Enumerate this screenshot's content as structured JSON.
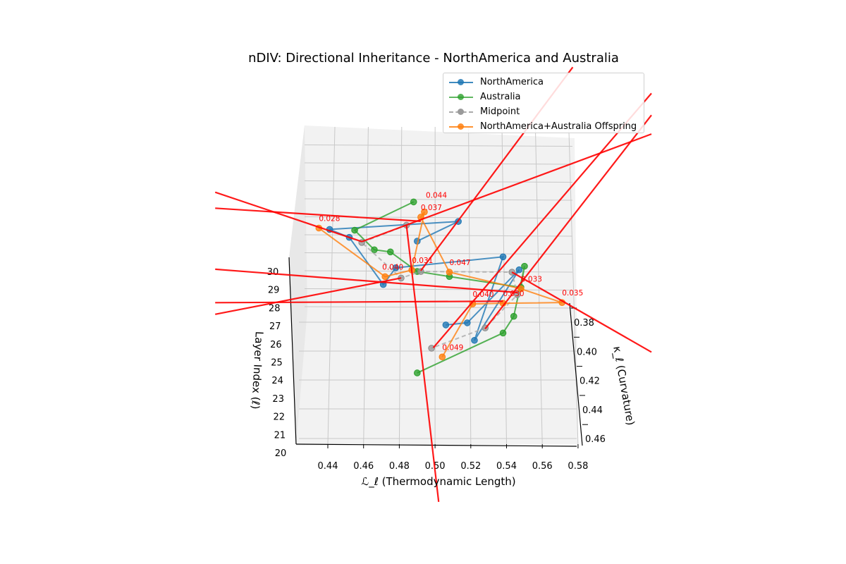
{
  "chart_data": {
    "type": "line3d",
    "title": "nDIV: Directional Inheritance - NorthAmerica and Australia",
    "xlabel": "ℒ_ℓ (Thermodynamic Length)",
    "ylabel": "κ_ℓ (Curvature)",
    "zlabel": "Layer Index (ℓ)",
    "xlim": [
      0.42,
      0.58
    ],
    "ylim": [
      0.37,
      0.46
    ],
    "zlim": [
      20,
      30
    ],
    "xticks": [
      "0.44",
      "0.46",
      "0.48",
      "0.50",
      "0.52",
      "0.54",
      "0.56",
      "0.58"
    ],
    "yticks": [
      "0.38",
      "0.40",
      "0.42",
      "0.44",
      "0.46"
    ],
    "zticks": [
      "20",
      "21",
      "22",
      "23",
      "24",
      "25",
      "26",
      "27",
      "28",
      "29",
      "30"
    ],
    "grid": true,
    "legend": "top-right",
    "point_format": [
      "L",
      "kappa",
      "layer"
    ],
    "series": [
      {
        "name": "NorthAmerica",
        "color": "#1f77b4",
        "style": "solid",
        "points": [
          [
            0.506,
            0.378,
            20
          ],
          [
            0.518,
            0.389,
            21
          ],
          [
            0.547,
            0.365,
            22
          ],
          [
            0.522,
            0.426,
            23
          ],
          [
            0.538,
            0.381,
            24
          ],
          [
            0.478,
            0.401,
            25
          ],
          [
            0.471,
            0.425,
            26
          ],
          [
            0.452,
            0.405,
            27
          ],
          [
            0.441,
            0.412,
            28
          ],
          [
            0.513,
            0.419,
            29
          ],
          [
            0.49,
            0.445,
            30
          ]
        ]
      },
      {
        "name": "Australia",
        "color": "#2ca02c",
        "style": "solid",
        "points": [
          [
            0.488,
            0.418,
            30
          ],
          [
            0.455,
            0.425,
            29
          ],
          [
            0.466,
            0.426,
            28
          ],
          [
            0.475,
            0.415,
            27
          ],
          [
            0.49,
            0.416,
            26
          ],
          [
            0.508,
            0.407,
            25
          ],
          [
            0.548,
            0.402,
            24
          ],
          [
            0.55,
            0.375,
            23
          ],
          [
            0.544,
            0.397,
            22
          ],
          [
            0.538,
            0.396,
            21
          ],
          [
            0.49,
            0.411,
            20
          ]
        ]
      },
      {
        "name": "Midpoint",
        "color": "#7f7f7f",
        "style": "dashed",
        "points": [
          [
            0.484,
            0.434,
            30
          ],
          [
            0.459,
            0.421,
            28
          ],
          [
            0.481,
            0.433,
            27
          ],
          [
            0.492,
            0.416,
            26
          ],
          [
            0.543,
            0.404,
            25
          ],
          [
            0.546,
            0.407,
            24
          ],
          [
            0.528,
            0.405,
            22
          ],
          [
            0.498,
            0.394,
            20
          ]
        ]
      },
      {
        "name": "NorthAmerica+Australia Offspring",
        "color": "#ff7f0e",
        "style": "solid",
        "points": [
          [
            0.435,
            0.436,
            30
          ],
          [
            0.472,
            0.432,
            27
          ],
          [
            0.487,
            0.415,
            26
          ],
          [
            0.494,
            0.4,
            28
          ],
          [
            0.492,
            0.416,
            29
          ],
          [
            0.508,
            0.404,
            25
          ],
          [
            0.548,
            0.403,
            24
          ],
          [
            0.571,
            0.4,
            23
          ],
          [
            0.538,
            0.388,
            22
          ],
          [
            0.521,
            0.376,
            21
          ],
          [
            0.504,
            0.4,
            20
          ]
        ],
        "labels": [
          "0.028",
          "0.040",
          "0.031",
          "0.044",
          "0.037",
          "0.047",
          "0.033",
          "0.035",
          "0.030",
          "0.040",
          "0.049"
        ]
      }
    ],
    "direction_lines": {
      "color": "#ff0000",
      "segments": [
        [
          [
            0.377,
            0.36,
            25
          ],
          [
            0.492,
            0.369,
            25
          ]
        ],
        [
          [
            0.377,
            0.349,
            25
          ],
          [
            0.459,
            0.383,
            25
          ]
        ],
        [
          [
            0.459,
            0.383,
            25
          ],
          [
            0.621,
            0.309,
            25
          ]
        ],
        [
          [
            0.577,
            0.263,
            25
          ],
          [
            0.492,
            0.403,
            25
          ]
        ],
        [
          [
            0.621,
            0.281,
            25
          ],
          [
            0.499,
            0.456,
            25
          ]
        ],
        [
          [
            0.621,
            0.296,
            25
          ],
          [
            0.528,
            0.443,
            25
          ]
        ],
        [
          [
            0.377,
            0.402,
            25
          ],
          [
            0.546,
            0.418,
            25
          ]
        ],
        [
          [
            0.377,
            0.433,
            25
          ],
          [
            0.481,
            0.408,
            25
          ]
        ],
        [
          [
            0.377,
            0.425,
            25
          ],
          [
            0.538,
            0.424,
            25
          ]
        ],
        [
          [
            0.484,
            0.372,
            25
          ],
          [
            0.502,
            0.562,
            25
          ]
        ],
        [
          [
            0.543,
            0.404,
            25
          ],
          [
            0.621,
            0.459,
            25
          ]
        ]
      ]
    }
  }
}
